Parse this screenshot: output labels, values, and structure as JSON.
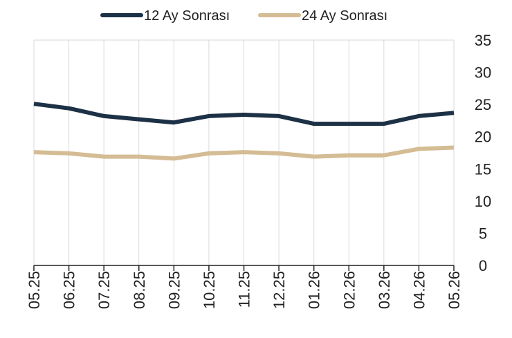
{
  "chart_data": {
    "type": "line",
    "title": "",
    "xlabel": "",
    "ylabel": "",
    "categories": [
      "05.25",
      "06.25",
      "07.25",
      "08.25",
      "09.25",
      "10.25",
      "11.25",
      "12.25",
      "01.26",
      "02.26",
      "03.26",
      "04.26",
      "05.26"
    ],
    "series": [
      {
        "name": "12 Ay Sonrası",
        "color": "#1d3146",
        "values": [
          25.1,
          24.4,
          23.2,
          22.7,
          22.2,
          23.2,
          23.4,
          23.2,
          22.0,
          22.0,
          22.0,
          23.2,
          23.7
        ]
      },
      {
        "name": "24 Ay Sonrası",
        "color": "#d4bc94",
        "values": [
          17.6,
          17.4,
          16.9,
          16.9,
          16.6,
          17.4,
          17.6,
          17.4,
          16.9,
          17.1,
          17.1,
          18.1,
          18.3
        ]
      }
    ],
    "ylim": [
      0,
      35
    ],
    "yticks": [
      0,
      5,
      10,
      15,
      20,
      25,
      30,
      35
    ],
    "y_axis_position": "right",
    "grid": "vertical",
    "legend": "top"
  }
}
